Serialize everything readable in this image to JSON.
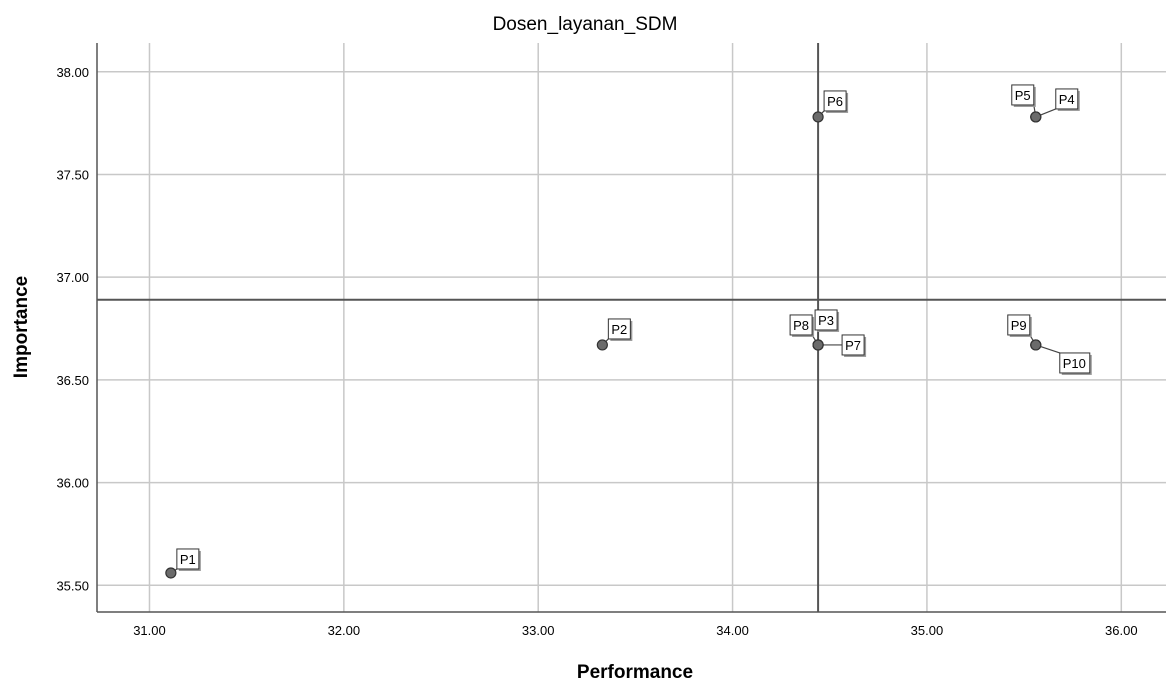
{
  "chart_data": {
    "type": "scatter",
    "title": "Dosen_layanan_SDM",
    "xlabel": "Performance",
    "ylabel": "Importance",
    "xlim": [
      30.73,
      36.23
    ],
    "ylim": [
      35.37,
      38.14
    ],
    "xticks": [
      "31.00",
      "32.00",
      "33.00",
      "34.00",
      "35.00",
      "36.00"
    ],
    "yticks": [
      "35.50",
      "36.00",
      "36.50",
      "37.00",
      "37.50",
      "38.00"
    ],
    "grid": true,
    "reference_lines": {
      "x": 34.44,
      "y": 36.89
    },
    "points": [
      {
        "label": "P1",
        "x": 31.11,
        "y": 35.56
      },
      {
        "label": "P2",
        "x": 33.33,
        "y": 36.67
      },
      {
        "label": "P3",
        "x": 34.44,
        "y": 36.67
      },
      {
        "label": "P4",
        "x": 35.56,
        "y": 37.78
      },
      {
        "label": "P5",
        "x": 35.56,
        "y": 37.78
      },
      {
        "label": "P6",
        "x": 34.44,
        "y": 37.78
      },
      {
        "label": "P7",
        "x": 34.44,
        "y": 36.67
      },
      {
        "label": "P8",
        "x": 34.44,
        "y": 36.67
      },
      {
        "label": "P9",
        "x": 35.56,
        "y": 36.67
      },
      {
        "label": "P10",
        "x": 35.56,
        "y": 36.67
      }
    ],
    "colors": {
      "marker": "#6b6b6b",
      "grid": "#c8c8c8",
      "reference": "#555555"
    }
  }
}
